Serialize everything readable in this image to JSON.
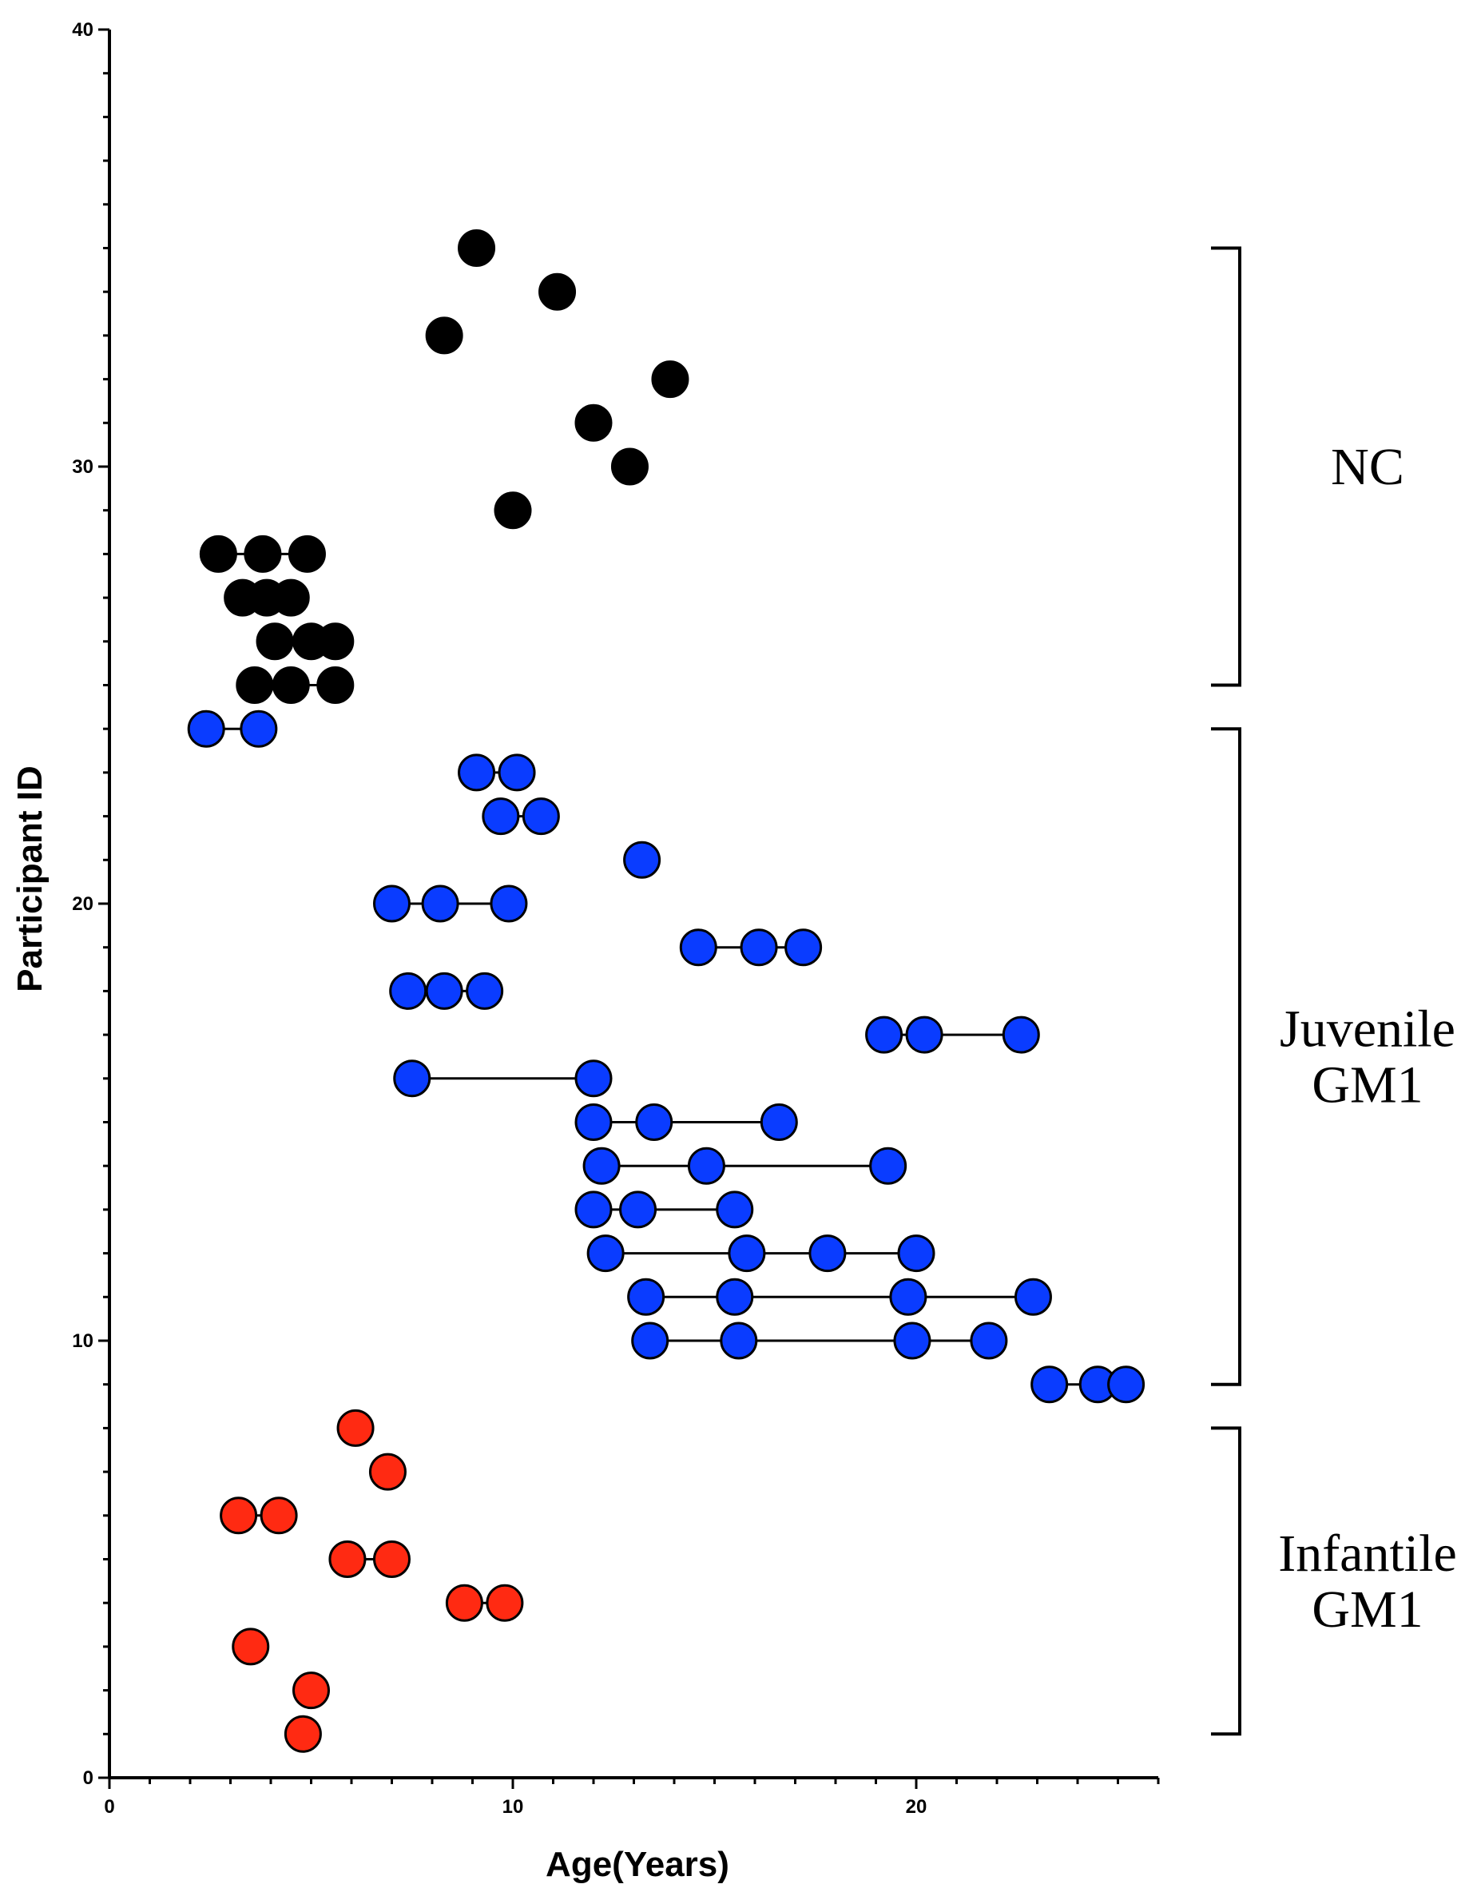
{
  "chart_data": {
    "type": "scatter",
    "title": "",
    "xlabel": "Age(Years)",
    "ylabel": "Participant ID",
    "xlim": [
      0,
      26
    ],
    "ylim": [
      0,
      40
    ],
    "x_ticks": [
      0,
      10,
      20
    ],
    "y_ticks": [
      0,
      10,
      20,
      30,
      40
    ],
    "grid": false,
    "colors": {
      "NC": "#000000",
      "Juvenile": "#0a3cff",
      "Infantile": "#ff2a12"
    },
    "groups": [
      {
        "name": "NC",
        "lines": [
          "NC"
        ],
        "id_range": [
          25,
          35
        ]
      },
      {
        "name": "Juvenile GM1",
        "lines": [
          "Juvenile",
          "GM1"
        ],
        "id_range": [
          9,
          24
        ]
      },
      {
        "name": "Infantile GM1",
        "lines": [
          "Infantile",
          "GM1"
        ],
        "id_range": [
          1,
          8
        ]
      }
    ],
    "participants": [
      {
        "id": 35,
        "group": "NC",
        "ages": [
          9.1
        ]
      },
      {
        "id": 34,
        "group": "NC",
        "ages": [
          11.1
        ]
      },
      {
        "id": 33,
        "group": "NC",
        "ages": [
          8.3
        ]
      },
      {
        "id": 32,
        "group": "NC",
        "ages": [
          13.9
        ]
      },
      {
        "id": 31,
        "group": "NC",
        "ages": [
          12.0
        ]
      },
      {
        "id": 30,
        "group": "NC",
        "ages": [
          12.9
        ]
      },
      {
        "id": 29,
        "group": "NC",
        "ages": [
          10.0
        ]
      },
      {
        "id": 28,
        "group": "NC",
        "ages": [
          2.7,
          3.8,
          4.9
        ]
      },
      {
        "id": 27,
        "group": "NC",
        "ages": [
          3.3,
          3.9,
          4.5
        ]
      },
      {
        "id": 26,
        "group": "NC",
        "ages": [
          4.1,
          5.0,
          5.6
        ]
      },
      {
        "id": 25,
        "group": "NC",
        "ages": [
          3.6,
          4.5,
          5.6
        ]
      },
      {
        "id": 24,
        "group": "Juvenile",
        "ages": [
          2.4,
          3.7
        ]
      },
      {
        "id": 23,
        "group": "Juvenile",
        "ages": [
          9.1,
          10.1
        ]
      },
      {
        "id": 22,
        "group": "Juvenile",
        "ages": [
          9.7,
          10.7
        ]
      },
      {
        "id": 21,
        "group": "Juvenile",
        "ages": [
          13.2
        ]
      },
      {
        "id": 20,
        "group": "Juvenile",
        "ages": [
          7.0,
          8.2,
          9.9
        ]
      },
      {
        "id": 19,
        "group": "Juvenile",
        "ages": [
          14.6,
          16.1,
          17.2
        ]
      },
      {
        "id": 18,
        "group": "Juvenile",
        "ages": [
          7.4,
          8.3,
          9.3
        ]
      },
      {
        "id": 17,
        "group": "Juvenile",
        "ages": [
          19.2,
          20.2,
          22.6
        ]
      },
      {
        "id": 16,
        "group": "Juvenile",
        "ages": [
          7.5,
          12.0
        ]
      },
      {
        "id": 15,
        "group": "Juvenile",
        "ages": [
          12.0,
          13.5,
          16.6
        ]
      },
      {
        "id": 14,
        "group": "Juvenile",
        "ages": [
          12.2,
          14.8,
          19.3
        ]
      },
      {
        "id": 13,
        "group": "Juvenile",
        "ages": [
          12.0,
          13.1,
          15.5
        ]
      },
      {
        "id": 12,
        "group": "Juvenile",
        "ages": [
          12.3,
          15.8,
          17.8,
          20.0
        ]
      },
      {
        "id": 11,
        "group": "Juvenile",
        "ages": [
          13.3,
          15.5,
          19.8,
          22.9
        ]
      },
      {
        "id": 10,
        "group": "Juvenile",
        "ages": [
          13.4,
          15.6,
          19.9,
          21.8
        ]
      },
      {
        "id": 9,
        "group": "Juvenile",
        "ages": [
          23.3,
          24.5,
          25.2
        ]
      },
      {
        "id": 8,
        "group": "Infantile",
        "ages": [
          6.1
        ]
      },
      {
        "id": 7,
        "group": "Infantile",
        "ages": [
          6.9
        ]
      },
      {
        "id": 6,
        "group": "Infantile",
        "ages": [
          3.2,
          4.2
        ]
      },
      {
        "id": 5,
        "group": "Infantile",
        "ages": [
          5.9,
          7.0
        ]
      },
      {
        "id": 4,
        "group": "Infantile",
        "ages": [
          8.8,
          9.8
        ]
      },
      {
        "id": 3,
        "group": "Infantile",
        "ages": [
          3.5
        ]
      },
      {
        "id": 2,
        "group": "Infantile",
        "ages": [
          5.0
        ]
      },
      {
        "id": 1,
        "group": "Infantile",
        "ages": [
          4.8
        ]
      }
    ]
  }
}
